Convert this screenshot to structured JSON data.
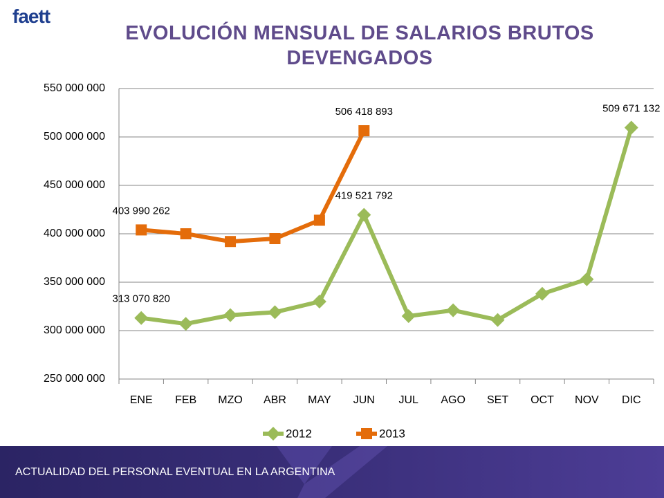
{
  "logo": "faett",
  "footer": "ACTUALIDAD DEL PERSONAL EVENTUAL EN LA ARGENTINA",
  "chart_data": {
    "type": "line",
    "title": "EVOLUCIÓN MENSUAL DE SALARIOS BRUTOS DEVENGADOS",
    "categories": [
      "ENE",
      "FEB",
      "MZO",
      "ABR",
      "MAY",
      "JUN",
      "JUL",
      "AGO",
      "SET",
      "OCT",
      "NOV",
      "DIC"
    ],
    "series": [
      {
        "name": "2012",
        "color": "#9bbb59",
        "marker": "diamond",
        "values": [
          313070820,
          307000000,
          316000000,
          319000000,
          330000000,
          419521792,
          315000000,
          321000000,
          311000000,
          338000000,
          353000000,
          509671132
        ],
        "value_labels": [
          "313 070 820",
          null,
          null,
          null,
          null,
          "419 521 792",
          null,
          null,
          null,
          null,
          null,
          "509 671 132"
        ]
      },
      {
        "name": "2013",
        "color": "#e46c0a",
        "marker": "square",
        "values": [
          403990262,
          400000000,
          392000000,
          395000000,
          414000000,
          506418893,
          null,
          null,
          null,
          null,
          null,
          null
        ],
        "value_labels": [
          "403 990 262",
          null,
          null,
          null,
          null,
          "506 418 893",
          null,
          null,
          null,
          null,
          null,
          null
        ]
      }
    ],
    "ylim": [
      250000000,
      550000000
    ],
    "yticks": [
      {
        "value": 250000000,
        "label": "250 000 000"
      },
      {
        "value": 300000000,
        "label": "300 000 000"
      },
      {
        "value": 350000000,
        "label": "350 000 000"
      },
      {
        "value": 400000000,
        "label": "400 000 000"
      },
      {
        "value": 450000000,
        "label": "450 000 000"
      },
      {
        "value": 500000000,
        "label": "500 000 000"
      },
      {
        "value": 550000000,
        "label": "550 000 000"
      }
    ],
    "grid": true,
    "legend": "bottom"
  }
}
